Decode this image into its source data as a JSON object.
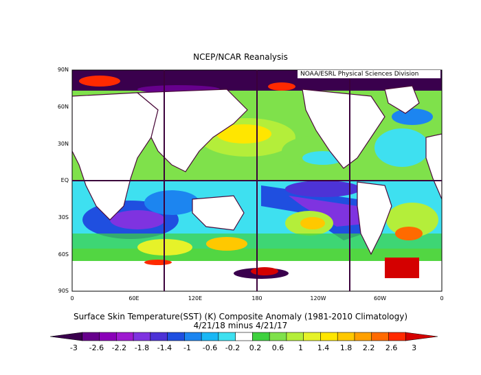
{
  "title": "NCEP/NCAR Reanalysis",
  "source_label": "NOAA/ESRL Physical Sciences Division",
  "caption_line1": "Surface Skin Temperature(SST) (K) Composite Anomaly (1981-2010 Climatology)",
  "caption_line2": "4/21/18 minus 4/21/17",
  "lat_labels": [
    "90N",
    "60N",
    "30N",
    "EQ",
    "30S",
    "60S",
    "90S"
  ],
  "lon_labels": [
    "0",
    "60E",
    "120E",
    "180",
    "120W",
    "60W",
    "0"
  ],
  "colorbar": {
    "labels": [
      "-3",
      "-2.6",
      "-2.2",
      "-1.8",
      "-1.4",
      "-1",
      "-0.6",
      "-0.2",
      "0.2",
      "0.6",
      "1",
      "1.4",
      "1.8",
      "2.2",
      "2.6",
      "3"
    ],
    "colors": [
      "#3a004d",
      "#66008c",
      "#8a00b8",
      "#9e1ad0",
      "#7f33e0",
      "#4d33d6",
      "#1f4fe0",
      "#1c85f0",
      "#19b7f5",
      "#3ee0f0",
      "#ffffff",
      "#3fd13f",
      "#7fe14b",
      "#b4ee3a",
      "#e6f229",
      "#ffe600",
      "#ffc800",
      "#ffa000",
      "#ff6a00",
      "#ff2a00",
      "#d40000"
    ]
  },
  "colors": {
    "ocean_base": "#3ee0f0",
    "land": "#ffffff",
    "coast": "#4a0a3a",
    "grid_line": "#3a003a"
  }
}
